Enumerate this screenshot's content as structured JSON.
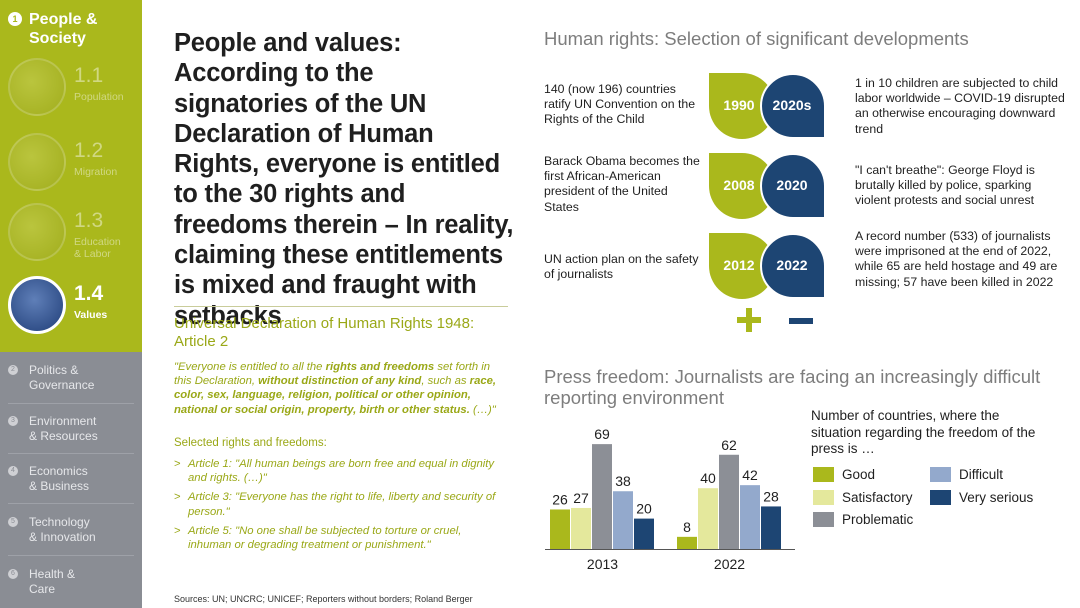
{
  "sidebar": {
    "active_chapter": {
      "number": "1",
      "label_line1": "People &",
      "label_line2": "Society"
    },
    "subitems": [
      {
        "number": "1.1",
        "label_line1": "Population",
        "label_line2": ""
      },
      {
        "number": "1.2",
        "label_line1": "Migration",
        "label_line2": ""
      },
      {
        "number": "1.3",
        "label_line1": "Education",
        "label_line2": "& Labor"
      },
      {
        "number": "1.4",
        "label_line1": "Values",
        "label_line2": ""
      }
    ],
    "chapters": [
      {
        "number": "2",
        "label_line1": "Politics &",
        "label_line2": "Governance"
      },
      {
        "number": "3",
        "label_line1": "Environment",
        "label_line2": "& Resources"
      },
      {
        "number": "4",
        "label_line1": "Economics",
        "label_line2": "& Business"
      },
      {
        "number": "5",
        "label_line1": "Technology",
        "label_line2": "& Innovation"
      },
      {
        "number": "6",
        "label_line1": "Health &",
        "label_line2": "Care"
      }
    ]
  },
  "headline": "People and values: According to the signatories of the UN Declaration of Human Rights, everyone is entitled to the 30 rights and freedoms therein – In reality, claiming these entitlements is mixed and fraught with setbacks",
  "declaration": {
    "title": "Universal Declaration of Human Rights 1948: Article 2",
    "quote_parts": [
      {
        "text": "\"Everyone is entitled to all the ",
        "bold": false
      },
      {
        "text": "rights and freedoms",
        "bold": true
      },
      {
        "text": " set forth in this Declaration, ",
        "bold": false
      },
      {
        "text": "without distinction of any kind",
        "bold": true
      },
      {
        "text": ", such as ",
        "bold": false
      },
      {
        "text": "race, color, sex, language, religion, political or other opinion, national or social origin, property, birth or other status.",
        "bold": true
      },
      {
        "text": " (…)\"",
        "bold": false
      }
    ],
    "selected_title": "Selected rights and freedoms:",
    "bullet_marker": ">",
    "articles": [
      "Article 1: \"All human beings are born free and equal in dignity and rights. (…)\"",
      "Article 3: \"Everyone has the right to life, liberty and security of person.\"",
      "Article 5: \"No one shall be subjected to torture or cruel, inhuman or degrading treatment or punishment.\""
    ]
  },
  "sources": "Sources: UN; UNCRC; UNICEF; Reporters without borders; Roland Berger",
  "human_rights": {
    "title": "Human rights: Selection of significant developments",
    "rows": [
      {
        "left_text": "140 (now 196) countries ratify UN Convention on the Rights of the Child",
        "left_year": "1990",
        "right_year": "2020s",
        "right_text": "1 in 10 children are subjected to child labor worldwide – COVID-19 disrupted an otherwise encouraging downward trend"
      },
      {
        "left_text": "Barack Obama becomes the first African-American president of the United States",
        "left_year": "2008",
        "right_year": "2020",
        "right_text": "\"I can't breathe\": George Floyd is brutally killed by police, sparking violent protests and social unrest"
      },
      {
        "left_text": "UN action plan on the safety of journalists",
        "left_year": "2012",
        "right_year": "2022",
        "right_text": "A record number (533) of journalists were imprisoned at the end of 2022, while 65 are held hostage and 49 are missing; 57 have been killed in 2022"
      }
    ],
    "colors": {
      "positive": "#aab81c",
      "negative": "#1d4573"
    }
  },
  "press_freedom": {
    "title": "Press freedom: Journalists are facing an increasingly difficult reporting environment",
    "legend_title": "Number of countries, where the situation regarding the freedom of the press is …"
  },
  "chart_data": {
    "type": "bar",
    "title": "Press freedom: Journalists are facing an increasingly difficult reporting environment",
    "categories": [
      "2013",
      "2022"
    ],
    "series": [
      {
        "name": "Good",
        "color": "#aab81c",
        "values": [
          26,
          8
        ]
      },
      {
        "name": "Satisfactory",
        "color": "#e4e89c",
        "values": [
          27,
          40
        ]
      },
      {
        "name": "Problematic",
        "color": "#8c8f96",
        "values": [
          69,
          62
        ]
      },
      {
        "name": "Difficult",
        "color": "#93a9cc",
        "values": [
          38,
          42
        ]
      },
      {
        "name": "Very serious",
        "color": "#1d4573",
        "values": [
          20,
          28
        ]
      }
    ],
    "ylim": [
      0,
      75
    ],
    "grid": false,
    "legend_position": "right"
  }
}
